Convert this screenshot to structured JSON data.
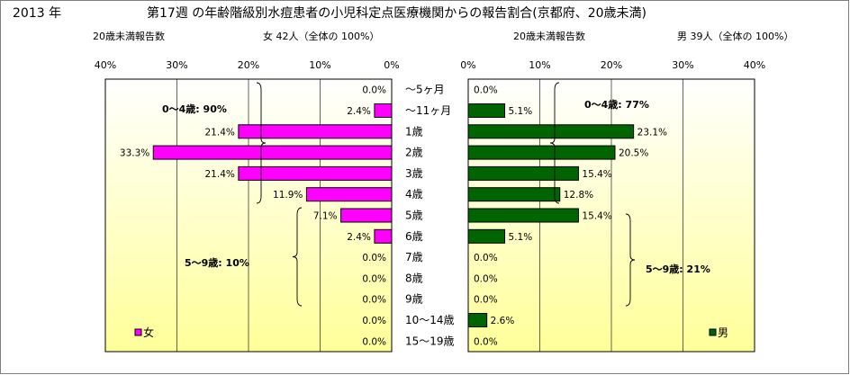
{
  "header": {
    "year": "2013 年",
    "title": "第17週 の年齢階級別水痘患者の小児科定点医療機関からの報告割合(京都府、20歳未満)"
  },
  "colors": {
    "female": "#ff00ff",
    "male": "#006400",
    "plot_bg_top": "#ffffff",
    "plot_bg_bottom": "#ffff99"
  },
  "chart_data": [
    {
      "type": "bar",
      "orientation": "horizontal",
      "direction": "right-to-left",
      "subtitle_left": "20歳未満報告数",
      "subtitle_right": "女  42人（全体の  100%）",
      "categories": [
        "～5ヶ月",
        "～11ヶ月",
        "1歳",
        "2歳",
        "3歳",
        "4歳",
        "5歳",
        "6歳",
        "7歳",
        "8歳",
        "9歳",
        "10～14歳",
        "15～19歳"
      ],
      "series": [
        {
          "name": "女",
          "values": [
            0.0,
            2.4,
            21.4,
            33.3,
            21.4,
            11.9,
            7.1,
            2.4,
            0.0,
            0.0,
            0.0,
            0.0,
            0.0
          ]
        }
      ],
      "value_labels": [
        "0.0%",
        "2.4%",
        "21.4%",
        "33.3%",
        "21.4%",
        "11.9%",
        "7.1%",
        "2.4%",
        "0.0%",
        "0.0%",
        "0.0%",
        "0.0%",
        "0.0%"
      ],
      "xlim": [
        0,
        40
      ],
      "xticks": [
        "0%",
        "10%",
        "20%",
        "30%",
        "40%"
      ],
      "grid": true,
      "legend": "bottom-left",
      "annotations": [
        "0～4歳: 90%",
        "5～9歳: 10%"
      ]
    },
    {
      "type": "bar",
      "orientation": "horizontal",
      "direction": "left-to-right",
      "subtitle_left": "20歳未満報告数",
      "subtitle_right": "男  39人（全体の  100%）",
      "categories": [
        "～5ヶ月",
        "～11ヶ月",
        "1歳",
        "2歳",
        "3歳",
        "4歳",
        "5歳",
        "6歳",
        "7歳",
        "8歳",
        "9歳",
        "10～14歳",
        "15～19歳"
      ],
      "series": [
        {
          "name": "男",
          "values": [
            0.0,
            5.1,
            23.1,
            20.5,
            15.4,
            12.8,
            15.4,
            5.1,
            0.0,
            0.0,
            0.0,
            2.6,
            0.0
          ]
        }
      ],
      "value_labels": [
        "0.0%",
        "5.1%",
        "23.1%",
        "20.5%",
        "15.4%",
        "12.8%",
        "15.4%",
        "5.1%",
        "0.0%",
        "0.0%",
        "0.0%",
        "2.6%",
        "0.0%"
      ],
      "xlim": [
        0,
        40
      ],
      "xticks": [
        "0%",
        "10%",
        "20%",
        "30%",
        "40%"
      ],
      "grid": true,
      "legend": "bottom-right",
      "annotations": [
        "0～4歳: 77%",
        "5～9歳: 21%"
      ]
    }
  ]
}
